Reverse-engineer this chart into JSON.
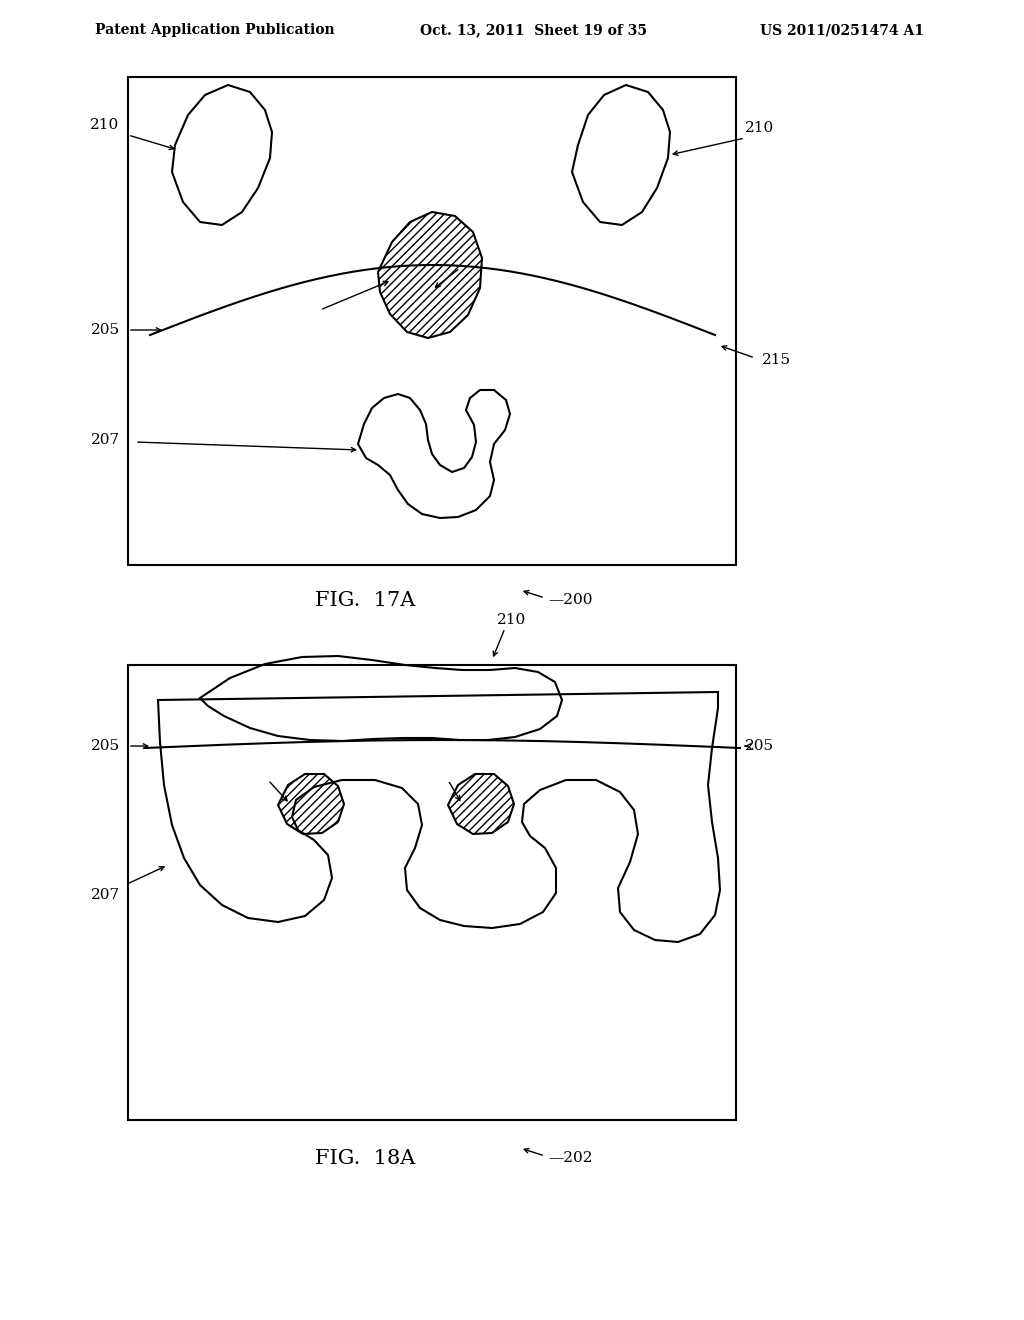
{
  "bg_color": "#ffffff",
  "line_color": "#000000",
  "header_left": "Patent Application Publication",
  "header_mid": "Oct. 13, 2011  Sheet 19 of 35",
  "header_right": "US 2011/0251474 A1",
  "fig1_label": "FIG.  17A",
  "fig1_ref": "200",
  "fig2_label": "FIG.  18A",
  "fig2_ref": "202"
}
